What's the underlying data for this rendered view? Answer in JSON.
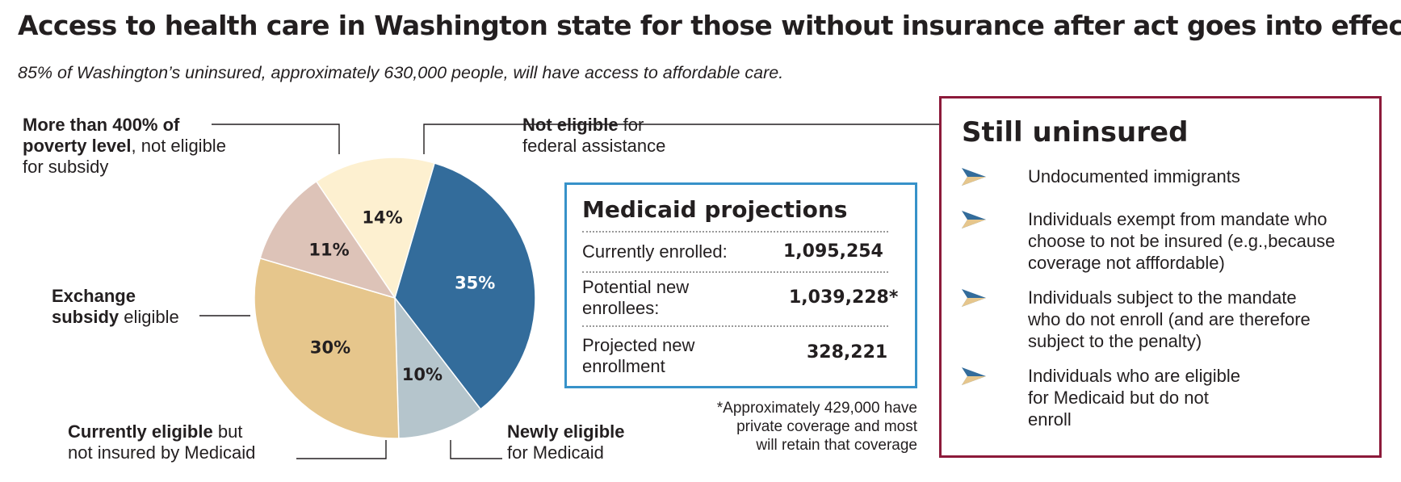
{
  "title": "Access to health care in Washington state for those without insurance after act goes into effect",
  "subtitle": "85% of Washington’s uninsured, approximately 630,000 people, will have access to affordable care.",
  "chart_data": {
    "type": "pie",
    "slices": [
      {
        "label": "Not eligible for federal assistance",
        "value": 14,
        "display": "14%",
        "color": "#fdf0d0"
      },
      {
        "label": "Newly eligible for Medicaid",
        "value": 35,
        "display": "35%",
        "color": "#336c9b"
      },
      {
        "label": "Currently eligible but not insured by Medicaid",
        "value": 10,
        "display": "10%",
        "color": "#b5c5cc"
      },
      {
        "label": "Exchange subsidy eligible",
        "value": 30,
        "display": "30%",
        "color": "#e6c68c"
      },
      {
        "label": "More than 400% of poverty level, not eligible for subsidy",
        "value": 11,
        "display": "11%",
        "color": "#ddc3b8"
      }
    ],
    "title": "",
    "label_colors": {
      "dark": "#231f20",
      "light": "#ffffff"
    }
  },
  "callouts": {
    "poverty": {
      "bold1": "More than 400% of",
      "bold2": "poverty level",
      "rest2": ", not eligible",
      "line3": "for subsidy"
    },
    "not_eligible": {
      "bold": "Not eligible",
      "rest1": " for",
      "line2": "federal assistance"
    },
    "exchange": {
      "bold1": "Exchange",
      "bold2": "subsidy",
      "rest2": " eligible"
    },
    "currently": {
      "bold": "Currently eligible",
      "rest1": " but",
      "line2": "not insured by Medicaid"
    },
    "newly": {
      "bold": "Newly eligible",
      "line2": "for Medicaid"
    }
  },
  "medicaid": {
    "title": "Medicaid projections",
    "rows": [
      {
        "label1": "Currently enrolled:",
        "label2": "",
        "value": "1,095,254"
      },
      {
        "label1": "Potential new",
        "label2": "enrollees:",
        "value": "1,039,228*"
      },
      {
        "label1": "Projected new",
        "label2": "enrollment",
        "value": "328,221"
      }
    ],
    "footnote1": "*Approximately 429,000 have",
    "footnote2": "private coverage and most",
    "footnote3": "will retain that coverage",
    "border_color": "#3792c9"
  },
  "uninsured": {
    "title": "Still uninsured",
    "border_color": "#8c1a3a",
    "items": [
      {
        "lines": [
          "Undocumented immigrants"
        ]
      },
      {
        "lines": [
          "Individuals exempt from mandate who",
          "choose to not be insured (e.g.,because",
          "coverage not afffordable)"
        ]
      },
      {
        "lines": [
          "Individuals subject to the mandate",
          "who do not enroll (and are therefore",
          "subject to the penalty)"
        ]
      },
      {
        "lines": [
          "Individuals who are eligible",
          "for Medicaid but do not",
          "enroll"
        ]
      }
    ],
    "bullet_icon": "arrow-pointer-icon",
    "bullet_colors": [
      "#336c9b",
      "#e6c68c"
    ]
  }
}
